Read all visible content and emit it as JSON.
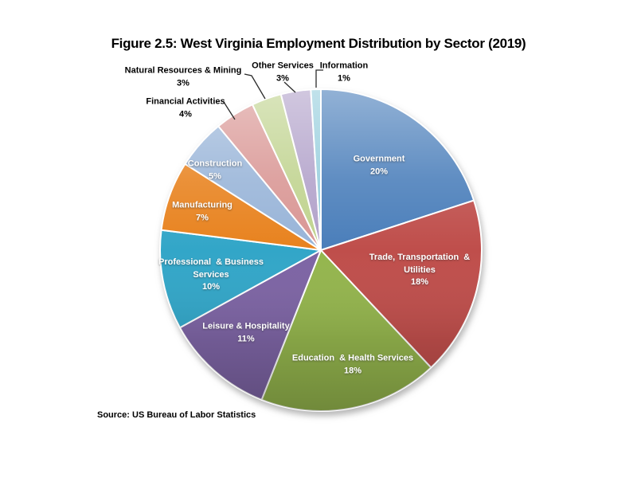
{
  "chart_data": {
    "type": "pie",
    "title": "Figure 2.5: West Virginia Employment Distribution by Sector (2019)",
    "source_note": "Source: US Bureau of Labor Statistics",
    "start_angle_deg": 0,
    "direction": "clockwise",
    "slices": [
      {
        "label": "Government",
        "lines": [
          "Government"
        ],
        "value_pct": 20,
        "pct_label": "20%",
        "color": "#4A7EBA",
        "label_position": "inside"
      },
      {
        "label": "Trade, Transportation & Utilities",
        "lines": [
          "Trade, Transportation  &",
          "Utilities"
        ],
        "value_pct": 18,
        "pct_label": "18%",
        "color": "#BF4E4B",
        "label_position": "inside"
      },
      {
        "label": "Education & Health Services",
        "lines": [
          "Education  & Health Services"
        ],
        "value_pct": 18,
        "pct_label": "18%",
        "color": "#94B54D",
        "label_position": "inside"
      },
      {
        "label": "Leisure & Hospitality",
        "lines": [
          "Leisure & Hospitality"
        ],
        "value_pct": 11,
        "pct_label": "11%",
        "color": "#7D64A4",
        "label_position": "inside"
      },
      {
        "label": "Professional & Business Services",
        "lines": [
          "Professional  & Business",
          "Services"
        ],
        "value_pct": 10,
        "pct_label": "10%",
        "color": "#32A6C8",
        "label_position": "inside"
      },
      {
        "label": "Manufacturing",
        "lines": [
          "Manufacturing"
        ],
        "value_pct": 7,
        "pct_label": "7%",
        "color": "#E8821E",
        "label_position": "inside"
      },
      {
        "label": "Construction",
        "lines": [
          "Construction"
        ],
        "value_pct": 5,
        "pct_label": "5%",
        "color": "#98B4D8",
        "label_position": "inside"
      },
      {
        "label": "Financial Activities",
        "lines": [
          "Financial Activities"
        ],
        "value_pct": 4,
        "pct_label": "4%",
        "color": "#D99694",
        "label_position": "outside"
      },
      {
        "label": "Natural Resources & Mining",
        "lines": [
          "Natural Resources & Mining"
        ],
        "value_pct": 3,
        "pct_label": "3%",
        "color": "#C0D38F",
        "label_position": "outside"
      },
      {
        "label": "Other Services",
        "lines": [
          "Other Services"
        ],
        "value_pct": 3,
        "pct_label": "3%",
        "color": "#B2A2CA",
        "label_position": "outside"
      },
      {
        "label": "Information",
        "lines": [
          "Information"
        ],
        "value_pct": 1,
        "pct_label": "1%",
        "color": "#97CEDD",
        "label_position": "outside"
      }
    ]
  }
}
